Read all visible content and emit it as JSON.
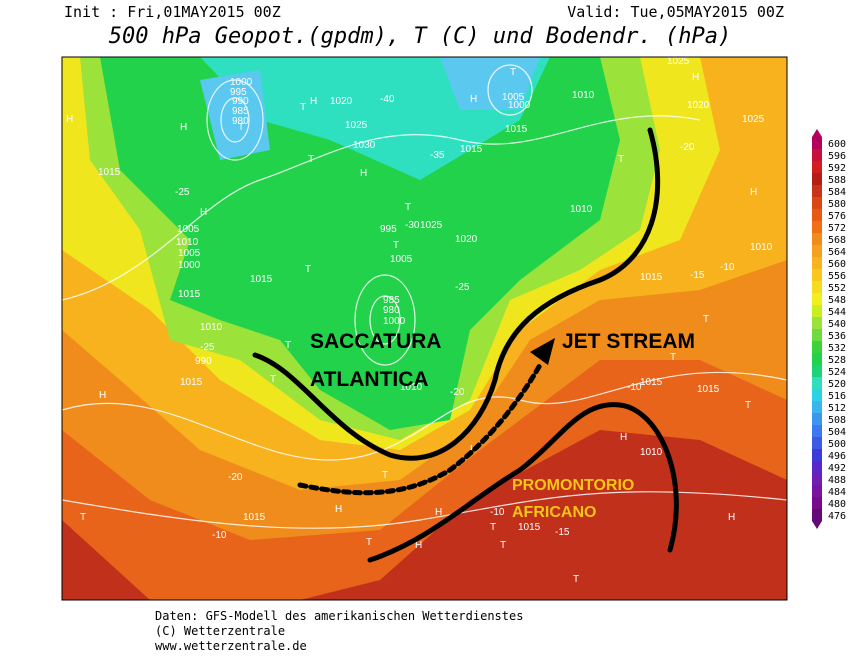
{
  "header": {
    "init": "Init : Fri,01MAY2015 00Z",
    "valid": "Valid: Tue,05MAY2015 00Z",
    "title": "500 hPa Geopot.(gpdm), T (C) und Bodendr. (hPa)"
  },
  "annotations": {
    "trough_line1": "SACCATURA",
    "trough_line2": "ATLANTICA",
    "jet": "JET STREAM",
    "ridge_line1": "PROMONTORIO",
    "ridge_line2": "AFRICANO"
  },
  "colorbar": [
    600,
    596,
    592,
    588,
    584,
    580,
    576,
    572,
    568,
    564,
    560,
    556,
    552,
    548,
    544,
    540,
    536,
    532,
    528,
    524,
    520,
    516,
    512,
    508,
    504,
    500,
    496,
    492,
    488,
    484,
    480,
    476
  ],
  "map_labels": [
    "H",
    "T",
    "1000",
    "995",
    "990",
    "985",
    "980",
    "T",
    "H",
    "1020",
    "-40",
    "1025",
    "1030",
    "T",
    "H",
    "-35",
    "1015",
    "T",
    "H",
    "1005",
    "1000",
    "1010",
    "1015",
    "1010",
    "1025",
    "H",
    "1020",
    "1025",
    "-20",
    "T",
    "H",
    "1015",
    "-25",
    "H",
    "1005",
    "1010",
    "1005",
    "1000",
    "995",
    "T",
    "-30",
    "1015",
    "1025",
    "H",
    "T",
    "1015",
    "1010",
    "-25",
    "T",
    "990",
    "985",
    "980",
    "1000",
    "1005",
    "T",
    "-25",
    "1020",
    "H",
    "T",
    "-20",
    "1015",
    "1010",
    "-20",
    "T",
    "H",
    "1015",
    "-15",
    "T",
    "T",
    "1015",
    "-10",
    "H",
    "1010",
    "-10",
    "T",
    "1010",
    "-10",
    "T",
    "T",
    "1015",
    "-15",
    "T",
    "H",
    "-10",
    "T",
    "1015",
    "1015",
    "H",
    "H",
    "T",
    "H"
  ],
  "footer": {
    "line1": "Daten: GFS-Modell des amerikanischen Wetterdienstes",
    "line2": "(C) Wetterzentrale",
    "line3": "www.wetterzentrale.de"
  }
}
